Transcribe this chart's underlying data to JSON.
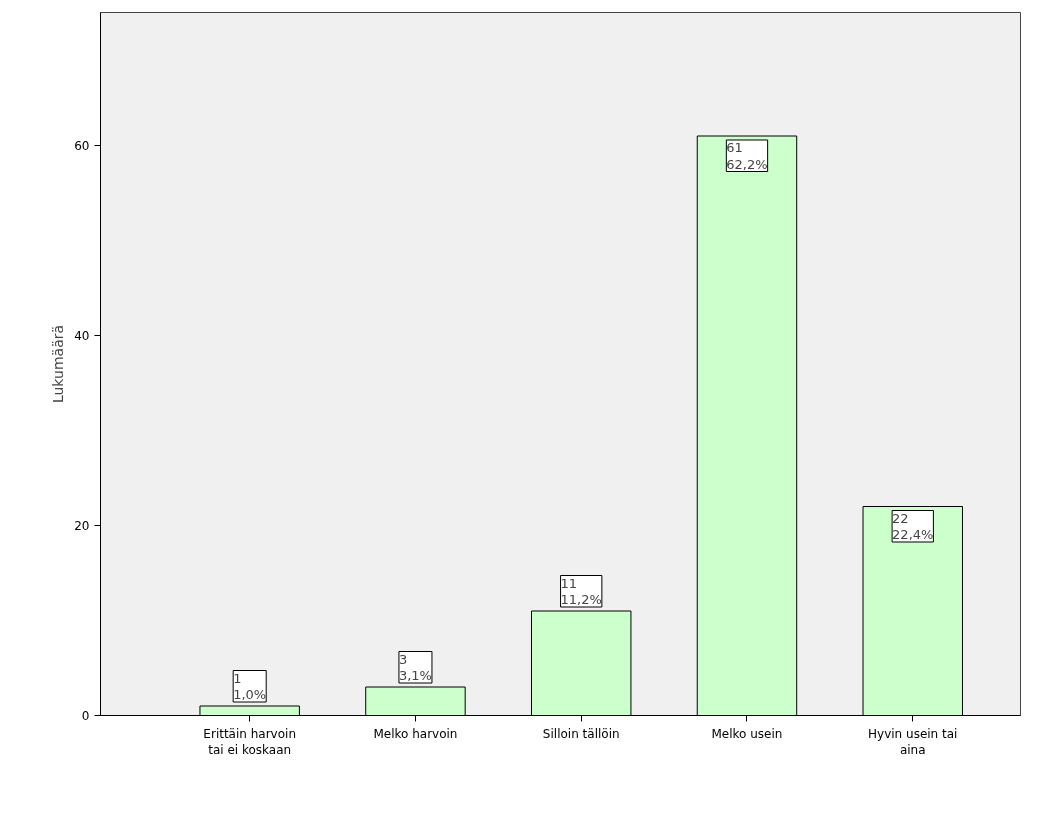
{
  "chart_data": {
    "type": "bar",
    "ylabel": "Lukumäärä",
    "categories": [
      "Erittäin harvoin tai ei koskaan",
      "Melko harvoin",
      "Silloin tällöin",
      "Melko usein",
      "Hyvin usein tai aina"
    ],
    "values": [
      1,
      3,
      11,
      61,
      22
    ],
    "value_labels": [
      "1\n1,0%",
      "3\n3,1%",
      "11\n11,2%",
      "61\n62,2%",
      "22\n22,4%"
    ],
    "color": "#ccffcc",
    "ylim": [
      0,
      74
    ],
    "yticks": [
      0,
      20,
      40,
      60
    ],
    "grid": false
  }
}
